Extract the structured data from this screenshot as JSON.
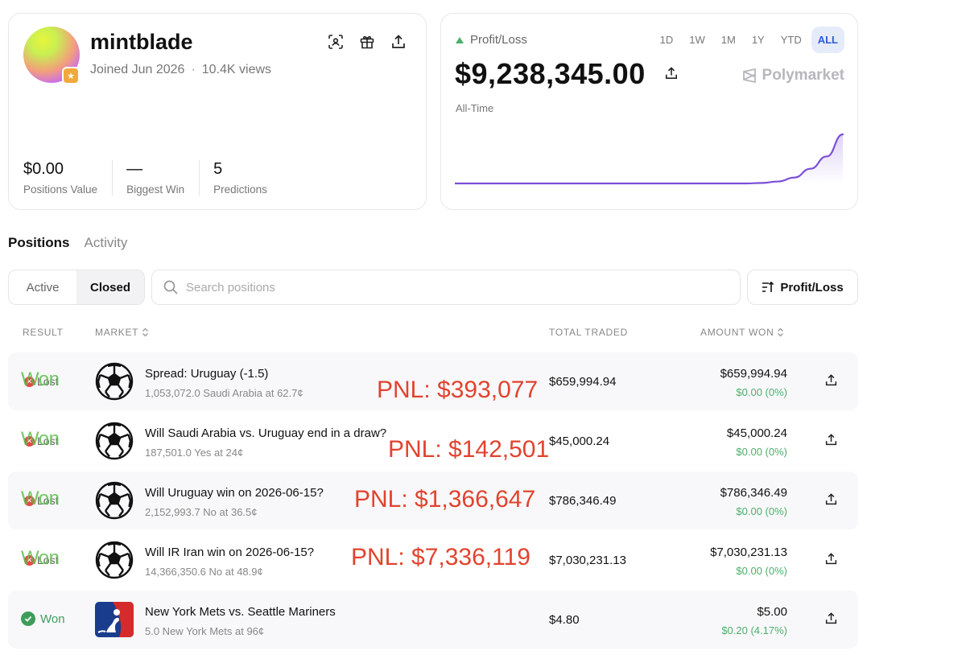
{
  "profile": {
    "username": "mintblade",
    "joined": "Joined Jun 2026",
    "separator": "·",
    "views": "10.4K views",
    "actions": [
      "scan-icon",
      "gift-icon",
      "share-icon"
    ],
    "stats": [
      {
        "value": "$0.00",
        "label": "Positions Value"
      },
      {
        "value": "—",
        "label": "Biggest Win"
      },
      {
        "value": "5",
        "label": "Predictions"
      }
    ]
  },
  "pnl": {
    "title": "Profit/Loss",
    "value": "$9,238,345.00",
    "range_label": "All-Time",
    "brand": "Polymarket",
    "ranges": [
      "1D",
      "1W",
      "1M",
      "1Y",
      "YTD",
      "ALL"
    ],
    "active_range": "ALL",
    "line_color": "#7b4fd8",
    "chart_data": {
      "type": "area",
      "title": "",
      "xlabel": "",
      "ylabel": "",
      "grid": false,
      "series": [
        {
          "values": [
            0,
            0,
            0,
            0,
            0,
            0,
            0,
            0,
            0,
            0,
            0,
            0,
            0,
            0,
            0,
            0,
            0,
            0,
            0,
            0.01,
            0.04,
            0.12,
            0.3,
            0.55,
            1.0
          ]
        }
      ]
    }
  },
  "tabs": [
    {
      "label": "Positions",
      "active": true
    },
    {
      "label": "Activity",
      "active": false
    }
  ],
  "filter": {
    "segments": [
      {
        "label": "Active",
        "active": false
      },
      {
        "label": "Closed",
        "active": true
      }
    ],
    "search_placeholder": "Search positions",
    "sort_label": "Profit/Loss"
  },
  "table": {
    "headers": {
      "result": "RESULT",
      "market": "MARKET",
      "total_traded": "TOTAL TRADED",
      "amount_won": "AMOUNT WON"
    },
    "rows": [
      {
        "result_lost": "Lost",
        "result_won": "Won",
        "title": "Spread: Uruguay (-1.5)",
        "subtitle": "1,053,072.0 Saudi Arabia at 62.7¢",
        "overlay": "PNL: $393,077",
        "total_traded": "$659,994.94",
        "amount_won": "$659,994.94",
        "amount_pct": "$0.00 (0%)",
        "icon": "soccer-ball-icon"
      },
      {
        "result_lost": "Lost",
        "result_won": "Won",
        "title": "Will Saudi Arabia vs. Uruguay end in a draw?",
        "subtitle": "187,501.0 Yes at 24¢",
        "overlay": "PNL: $142,501",
        "total_traded": "$45,000.24",
        "amount_won": "$45,000.24",
        "amount_pct": "$0.00 (0%)",
        "icon": "soccer-ball-icon"
      },
      {
        "result_lost": "Lost",
        "result_won": "Won",
        "title": "Will Uruguay win on 2026-06-15?",
        "subtitle": "2,152,993.7 No at 36.5¢",
        "overlay": "PNL: $1,366,647",
        "total_traded": "$786,346.49",
        "amount_won": "$786,346.49",
        "amount_pct": "$0.00 (0%)",
        "icon": "soccer-ball-icon"
      },
      {
        "result_lost": "Lost",
        "result_won": "Won",
        "title": "Will IR Iran win on 2026-06-15?",
        "subtitle": "14,366,350.6 No at 48.9¢",
        "overlay": "PNL: $7,336,119",
        "total_traded": "$7,030,231.13",
        "amount_won": "$7,030,231.13",
        "amount_pct": "$0.00 (0%)",
        "icon": "soccer-ball-icon"
      },
      {
        "result_won": "Won",
        "title": "New York Mets vs. Seattle Mariners",
        "subtitle": "5.0 New York Mets at 96¢",
        "total_traded": "$4.80",
        "amount_won": "$5.00",
        "amount_pct": "$0.20 (4.17%)",
        "icon": "mlb-logo-icon"
      }
    ]
  }
}
